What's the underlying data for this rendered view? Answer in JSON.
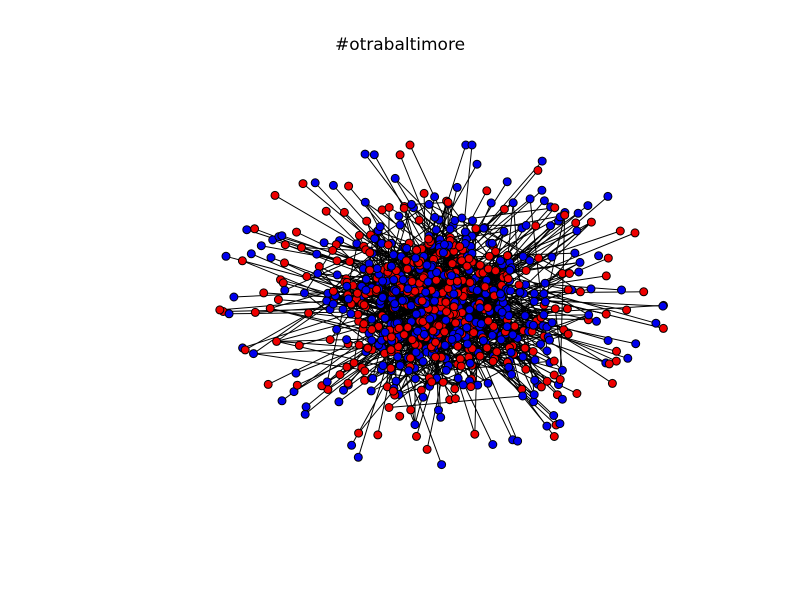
{
  "figure": {
    "title": "#otrabaltimore"
  },
  "graph": {
    "type": "network",
    "node_colors": {
      "group_a": "#0000ee",
      "group_b": "#ee0000"
    },
    "edge_color": "#000000",
    "node_outline_color": "#000000",
    "background": "#ffffff"
  }
}
